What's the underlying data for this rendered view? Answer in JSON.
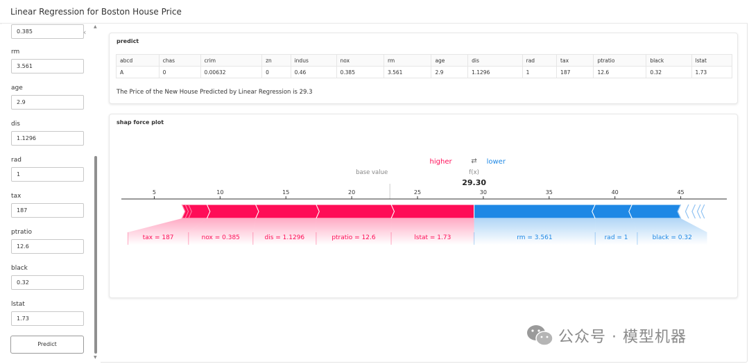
{
  "app": {
    "title": "Linear Regression for Boston House Price"
  },
  "sidebar": {
    "collapse_icon": "chevron-left-icon",
    "top_input_value": "0.385",
    "fields": [
      {
        "label": "rm",
        "value": "3.561"
      },
      {
        "label": "age",
        "value": "2.9"
      },
      {
        "label": "dis",
        "value": "1.1296"
      },
      {
        "label": "rad",
        "value": "1"
      },
      {
        "label": "tax",
        "value": "187"
      },
      {
        "label": "ptratio",
        "value": "12.6"
      },
      {
        "label": "black",
        "value": "0.32"
      },
      {
        "label": "lstat",
        "value": "1.73"
      }
    ],
    "predict_label": "Predict"
  },
  "predict_card": {
    "title": "predict",
    "columns": [
      "abcd",
      "chas",
      "crim",
      "zn",
      "indus",
      "nox",
      "rm",
      "age",
      "dis",
      "rad",
      "tax",
      "ptratio",
      "black",
      "lstat"
    ],
    "row": [
      "A",
      "0",
      "0.00632",
      "0",
      "0.46",
      "0.385",
      "3.561",
      "2.9",
      "1.1296",
      "1",
      "187",
      "12.6",
      "0.32",
      "1.73"
    ],
    "result": "The Price of the New House Predicted by Linear Regression is 29.3"
  },
  "shap_card": {
    "title": "shap force plot",
    "legend_higher": "higher",
    "legend_arrow": "⇄",
    "legend_lower": "lower",
    "base_value_label": "base value",
    "fx_label": "f(x)",
    "fx_value": "29.30",
    "colors": {
      "positive": "#ff0d57",
      "negative": "#1e88e5"
    }
  },
  "chart_data": {
    "type": "force",
    "title": "",
    "xticks": [
      5,
      10,
      15,
      20,
      25,
      30,
      35,
      40,
      45
    ],
    "xlim": [
      2.5,
      48.5
    ],
    "base_value": 22.9,
    "output_value": 29.3,
    "positive_features": [
      {
        "label": "tax = 187",
        "start": 7.1,
        "end": 9.0
      },
      {
        "label": "nox = 0.385",
        "start": 9.0,
        "end": 12.7
      },
      {
        "label": "dis = 1.1296",
        "start": 12.7,
        "end": 17.3
      },
      {
        "label": "ptratio = 12.6",
        "start": 17.3,
        "end": 23.0
      },
      {
        "label": "lstat = 1.73",
        "start": 23.0,
        "end": 29.3
      }
    ],
    "positive_slivers": [
      7.1,
      7.35,
      7.6
    ],
    "negative_features": [
      {
        "label": "rm = 3.561",
        "start": 29.3,
        "end": 38.5
      },
      {
        "label": "rad = 1",
        "start": 38.5,
        "end": 41.3
      },
      {
        "label": "black = 0.32",
        "start": 41.3,
        "end": 45.0
      }
    ],
    "negative_slivers": [
      45.0,
      45.6,
      46.1,
      46.5,
      46.8
    ]
  },
  "watermark": "公众号 · 模型机器"
}
